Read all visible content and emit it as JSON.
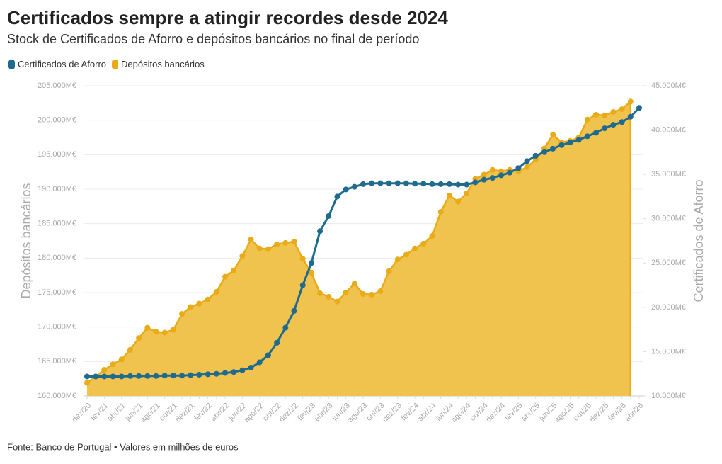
{
  "chart_data": {
    "type": "line-area",
    "title": "Certificados sempre a atingir recordes desde 2024",
    "subtitle": "Stock de Certificados de Aforro e depósitos bancários no final de período",
    "source": "Fonte: Banco de Portugal • Valores em milhões de euros",
    "y_label": "Depósitos bancários",
    "y2_label": "Certificados de Aforro",
    "categories": [
      "dez/20",
      null,
      "fev/21",
      null,
      "abr/21",
      null,
      "jun/21",
      null,
      "ago/21",
      null,
      "out/21",
      null,
      "dez/21",
      null,
      "fev/22",
      null,
      "abr/22",
      null,
      "jun/22",
      null,
      "ago/22",
      null,
      "out/22",
      null,
      "dez/22",
      null,
      "fev/23",
      null,
      "abr/23",
      null,
      "jun/23",
      null,
      "ago/23",
      null,
      "out/23",
      null,
      "dez/23",
      null,
      "fev/24",
      null,
      "abr/24",
      null,
      "jun/24",
      null,
      "ago/24",
      null,
      "out/24",
      null,
      "dez/24",
      null,
      "fev/25",
      null,
      "abr/25",
      null,
      "jun/25",
      null,
      "ago/25",
      null,
      "out/25",
      null,
      "dez/25",
      null,
      "fev/26",
      null,
      "abr/26"
    ],
    "series": [
      {
        "name": "Certificados de Aforro",
        "color": "#1f6a8f",
        "axis": "y2",
        "values": [
          12200,
          12200,
          12200,
          12200,
          12200,
          12250,
          12250,
          12250,
          12250,
          12300,
          12300,
          12300,
          12350,
          12400,
          12450,
          12500,
          12600,
          12700,
          12900,
          13200,
          13800,
          14600,
          16000,
          17700,
          19600,
          22500,
          25000,
          28600,
          30300,
          32500,
          33300,
          33600,
          33900,
          34000,
          34000,
          34000,
          34000,
          34000,
          33950,
          33950,
          33900,
          33900,
          33900,
          33850,
          33850,
          34100,
          34400,
          34600,
          34900,
          35200,
          35700,
          36500,
          37100,
          37500,
          37900,
          38300,
          38600,
          38900,
          39300,
          39700,
          40200,
          40600,
          40900,
          41500,
          42500
        ]
      },
      {
        "name": "Depósitos bancários",
        "color": "#e9ab17",
        "fill": "#f0c24e",
        "axis": "y",
        "values": [
          161900,
          162800,
          163800,
          164600,
          165300,
          166700,
          168400,
          169900,
          169300,
          169200,
          169600,
          171900,
          172900,
          173400,
          174000,
          175100,
          177300,
          178200,
          180300,
          182700,
          181400,
          181300,
          182000,
          182200,
          182400,
          179900,
          177900,
          174900,
          174400,
          173700,
          175000,
          176300,
          174800,
          174700,
          175200,
          178100,
          179800,
          180500,
          181400,
          182100,
          183200,
          186700,
          189100,
          188200,
          189400,
          191500,
          192100,
          192800,
          192600,
          192800,
          192600,
          193200,
          194300,
          195900,
          197900,
          196800,
          197000,
          197500,
          200100,
          200800,
          200700,
          201200,
          201600,
          202700,
          null
        ]
      }
    ],
    "ylim": [
      160000,
      205000
    ],
    "yticks": [
      {
        "value": 160000,
        "label": "160.000M€"
      },
      {
        "value": 165000,
        "label": "165.000M€"
      },
      {
        "value": 170000,
        "label": "170.000M€"
      },
      {
        "value": 175000,
        "label": "175.000M€"
      },
      {
        "value": 180000,
        "label": "180.000M€"
      },
      {
        "value": 185000,
        "label": "185.000M€"
      },
      {
        "value": 190000,
        "label": "190.000M€"
      },
      {
        "value": 195000,
        "label": "195.000M€"
      },
      {
        "value": 200000,
        "label": "200.000M€"
      },
      {
        "value": 205000,
        "label": "205.000M€"
      }
    ],
    "y2lim": [
      10000,
      45000
    ],
    "y2ticks": [
      {
        "value": 10000,
        "label": "10.000M€"
      },
      {
        "value": 15000,
        "label": "15.000M€"
      },
      {
        "value": 20000,
        "label": "20.000M€"
      },
      {
        "value": 25000,
        "label": "25.000M€"
      },
      {
        "value": 30000,
        "label": "30.000M€"
      },
      {
        "value": 35000,
        "label": "35.000M€"
      },
      {
        "value": 40000,
        "label": "40.000M€"
      },
      {
        "value": 45000,
        "label": "45.000M€"
      }
    ],
    "grid": true
  }
}
